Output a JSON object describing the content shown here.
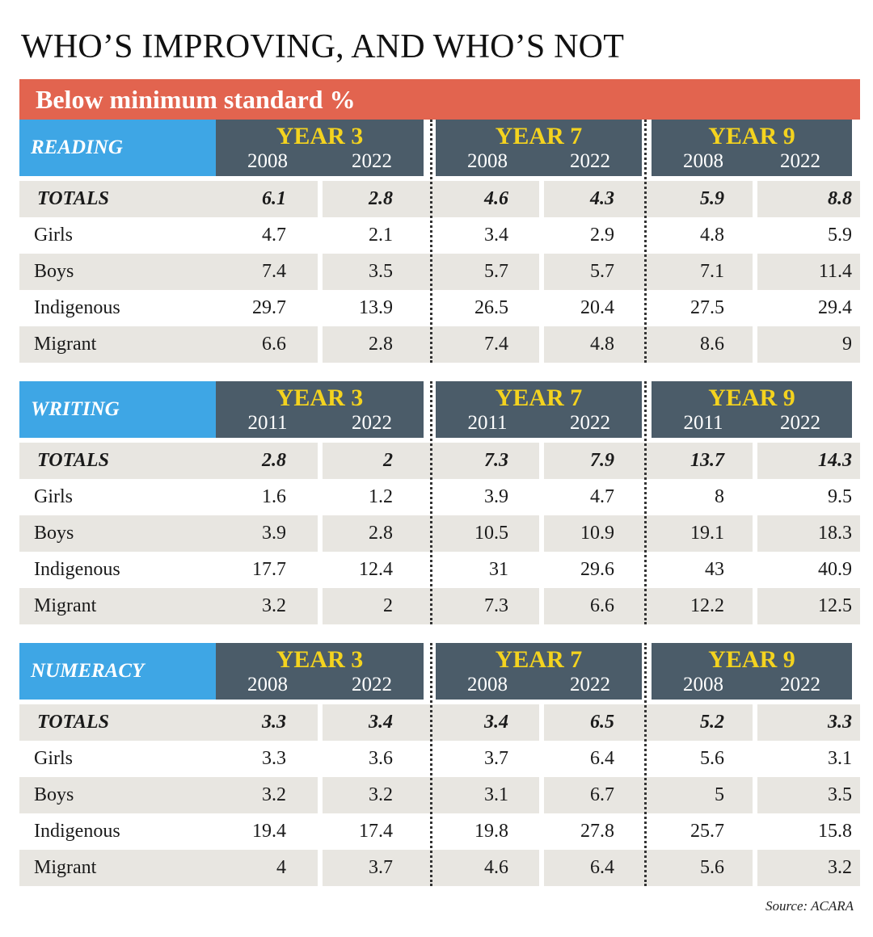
{
  "title": "WHO’S IMPROVING, AND WHO’S NOT",
  "banner": "Below minimum standard %",
  "source": "Source: ACARA",
  "colors": {
    "banner": "#e2644f",
    "section_label": "#3ea6e5",
    "year_header": "#4b5c69",
    "year_name": "#f4d31f",
    "row_shade": "#e8e6e1"
  },
  "chart_data": [
    {
      "type": "table",
      "section": "READING",
      "year_groups": [
        {
          "name": "YEAR 3",
          "columns": [
            "2008",
            "2022"
          ]
        },
        {
          "name": "YEAR 7",
          "columns": [
            "2008",
            "2022"
          ]
        },
        {
          "name": "YEAR 9",
          "columns": [
            "2008",
            "2022"
          ]
        }
      ],
      "rows": [
        {
          "label": "TOTALS",
          "values": [
            "6.1",
            "2.8",
            "4.6",
            "4.3",
            "5.9",
            "8.8"
          ]
        },
        {
          "label": "Girls",
          "values": [
            "4.7",
            "2.1",
            "3.4",
            "2.9",
            "4.8",
            "5.9"
          ]
        },
        {
          "label": "Boys",
          "values": [
            "7.4",
            "3.5",
            "5.7",
            "5.7",
            "7.1",
            "11.4"
          ]
        },
        {
          "label": "Indigenous",
          "values": [
            "29.7",
            "13.9",
            "26.5",
            "20.4",
            "27.5",
            "29.4"
          ]
        },
        {
          "label": "Migrant",
          "values": [
            "6.6",
            "2.8",
            "7.4",
            "4.8",
            "8.6",
            "9"
          ]
        }
      ]
    },
    {
      "type": "table",
      "section": "WRITING",
      "year_groups": [
        {
          "name": "YEAR 3",
          "columns": [
            "2011",
            "2022"
          ]
        },
        {
          "name": "YEAR 7",
          "columns": [
            "2011",
            "2022"
          ]
        },
        {
          "name": "YEAR 9",
          "columns": [
            "2011",
            "2022"
          ]
        }
      ],
      "rows": [
        {
          "label": "TOTALS",
          "values": [
            "2.8",
            "2",
            "7.3",
            "7.9",
            "13.7",
            "14.3"
          ]
        },
        {
          "label": "Girls",
          "values": [
            "1.6",
            "1.2",
            "3.9",
            "4.7",
            "8",
            "9.5"
          ]
        },
        {
          "label": "Boys",
          "values": [
            "3.9",
            "2.8",
            "10.5",
            "10.9",
            "19.1",
            "18.3"
          ]
        },
        {
          "label": "Indigenous",
          "values": [
            "17.7",
            "12.4",
            "31",
            "29.6",
            "43",
            "40.9"
          ]
        },
        {
          "label": "Migrant",
          "values": [
            "3.2",
            "2",
            "7.3",
            "6.6",
            "12.2",
            "12.5"
          ]
        }
      ]
    },
    {
      "type": "table",
      "section": "NUMERACY",
      "year_groups": [
        {
          "name": "YEAR 3",
          "columns": [
            "2008",
            "2022"
          ]
        },
        {
          "name": "YEAR 7",
          "columns": [
            "2008",
            "2022"
          ]
        },
        {
          "name": "YEAR 9",
          "columns": [
            "2008",
            "2022"
          ]
        }
      ],
      "rows": [
        {
          "label": "TOTALS",
          "values": [
            "3.3",
            "3.4",
            "3.4",
            "6.5",
            "5.2",
            "3.3"
          ]
        },
        {
          "label": "Girls",
          "values": [
            "3.3",
            "3.6",
            "3.7",
            "6.4",
            "5.6",
            "3.1"
          ]
        },
        {
          "label": "Boys",
          "values": [
            "3.2",
            "3.2",
            "3.1",
            "6.7",
            "5",
            "3.5"
          ]
        },
        {
          "label": "Indigenous",
          "values": [
            "19.4",
            "17.4",
            "19.8",
            "27.8",
            "25.7",
            "15.8"
          ]
        },
        {
          "label": "Migrant",
          "values": [
            "4",
            "3.7",
            "4.6",
            "6.4",
            "5.6",
            "3.2"
          ]
        }
      ]
    }
  ]
}
